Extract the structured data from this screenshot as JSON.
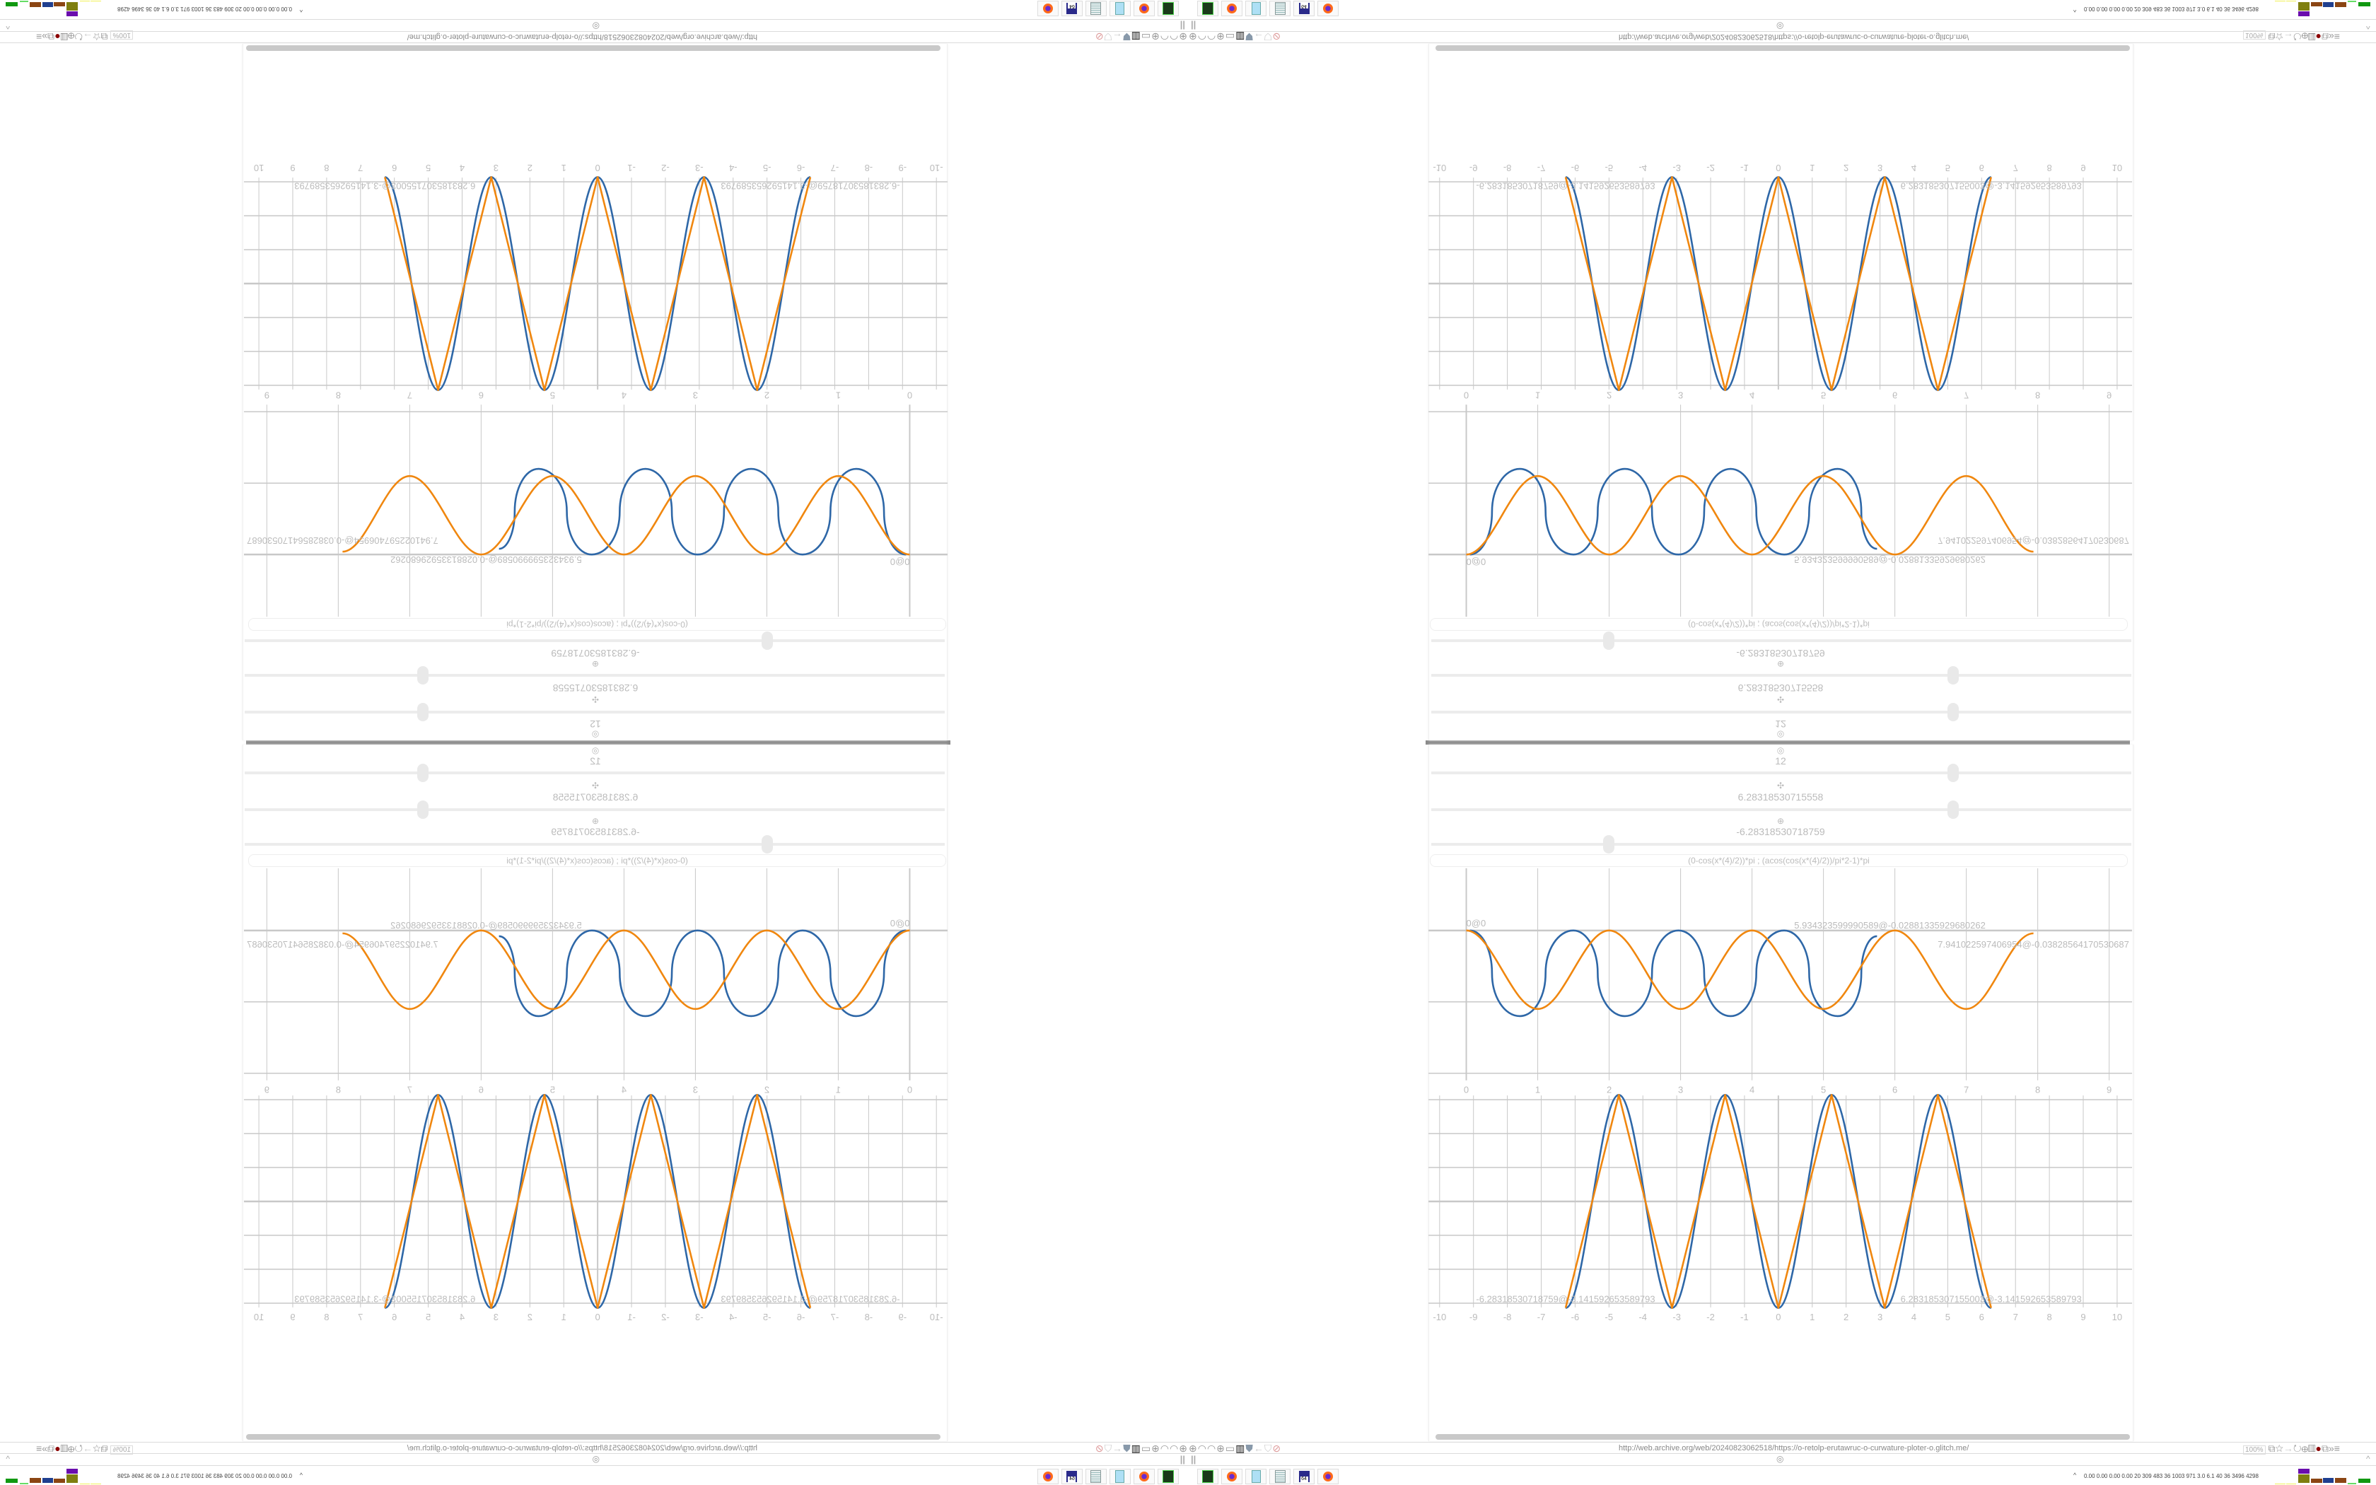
{
  "browser": {
    "url": "http://web.archive.org/web/20240823062518/https://o-retolp-erutawruc-o-curwature-ploter-o.glitch.me/",
    "zoom": "100%",
    "left_icons": [
      "globe-icon",
      "reload-icon",
      "reload-icon",
      "globe-icon",
      "folder-icon",
      "trash-icon",
      "shield-badge-icon",
      "back-arrow-icon",
      "shield-icon",
      "lock-off-icon"
    ],
    "right_icons": [
      "reader-icon",
      "star-icon",
      "forward-arrow-icon",
      "reload-icon",
      "globe-icon",
      "trash-icon",
      "addon-icon",
      "extension-icon",
      "overflow-icon",
      "menu-icon"
    ],
    "pause_glyph": "||",
    "scroll_glyph": "◎",
    "collapse_glyph": "^"
  },
  "controls": {
    "sliders": [
      {
        "icon": "◎",
        "value": "12",
        "position": 0.745
      },
      {
        "icon": "✣",
        "value": "6.28318530715558",
        "position": 0.745
      },
      {
        "icon": "⊕",
        "value": "-6.28318530718759",
        "position": 0.254
      }
    ],
    "formula": "(0-cos(x*(4)/2))*pi ; (acos(cos(x*(4)/2))/pi*2-1)*pi"
  },
  "chart_data": [
    {
      "type": "line",
      "xlim": [
        -0.53,
        9.32
      ],
      "ylim": [
        -2.33,
        0.89
      ],
      "grid": true,
      "x_ticks": [
        "0",
        "1",
        "2",
        "3",
        "4",
        "5",
        "6",
        "7",
        "8",
        "9"
      ],
      "x_tick_values": [
        0,
        1,
        2,
        3,
        4,
        5,
        6,
        7,
        8,
        9
      ],
      "y_gridlines": [
        0,
        -1,
        -2
      ],
      "series": [
        {
          "color": "#2e67a7",
          "interpolation": "oval",
          "points": [
            [
              0.05,
              0
            ],
            [
              0.36,
              -0.6
            ],
            [
              0.75,
              -1.2
            ],
            [
              1.11,
              -0.6
            ],
            [
              1.5,
              0
            ],
            [
              1.84,
              -0.6
            ],
            [
              2.22,
              -1.2
            ],
            [
              2.6,
              -0.6
            ],
            [
              2.97,
              0
            ],
            [
              3.33,
              -0.6
            ],
            [
              3.7,
              -1.2
            ],
            [
              4.06,
              -0.6
            ],
            [
              4.45,
              0
            ],
            [
              4.8,
              -0.6
            ],
            [
              5.2,
              -1.2
            ],
            [
              5.53,
              -0.6
            ],
            [
              5.75,
              -0.08
            ]
          ]
        },
        {
          "color": "#f0870f",
          "interpolation": "smooth",
          "points": [
            [
              0,
              0
            ],
            [
              1,
              -1.1
            ],
            [
              2,
              0
            ],
            [
              3,
              -1.1
            ],
            [
              4,
              0
            ],
            [
              5,
              -1.1
            ],
            [
              6,
              0
            ],
            [
              7,
              -1.1
            ],
            [
              7.94,
              -0.04
            ]
          ]
        }
      ],
      "point_labels": [
        {
          "x": 0,
          "y": 0,
          "text": "0@0"
        },
        {
          "x": 5.93,
          "y": -0.03,
          "text": "5.934323599990589@-0.02881335929680262"
        },
        {
          "x": 7.94,
          "y": -0.04,
          "text": "7.941022597406954@-0.03828564170530687"
        }
      ]
    },
    {
      "type": "line",
      "xlim": [
        -10.33,
        10.44
      ],
      "ylim": [
        -3.67,
        3.21
      ],
      "grid": true,
      "x_ticks": [
        "-10",
        "-9",
        "-8",
        "-7",
        "-6",
        "-5",
        "-4",
        "-3",
        "-2",
        "-1",
        "0",
        "1",
        "2",
        "3",
        "4",
        "5",
        "6",
        "7",
        "8",
        "9",
        "10"
      ],
      "x_tick_values": [
        -10,
        -9,
        -8,
        -7,
        -6,
        -5,
        -4,
        -3,
        -2,
        -1,
        0,
        1,
        2,
        3,
        4,
        5,
        6,
        7,
        8,
        9,
        10
      ],
      "y_gridlines": [
        3,
        2,
        1,
        0,
        -1,
        -2,
        -3
      ],
      "series": [
        {
          "color": "#2e67a7",
          "interpolation": "smooth",
          "points": [
            [
              -6.28,
              -3.14
            ],
            [
              -4.71,
              3.14
            ],
            [
              -3.14,
              -3.14
            ],
            [
              -1.57,
              3.14
            ],
            [
              0,
              -3.14
            ],
            [
              1.57,
              3.14
            ],
            [
              3.14,
              -3.14
            ],
            [
              4.71,
              3.14
            ],
            [
              6.28,
              -3.14
            ]
          ]
        },
        {
          "color": "#f0870f",
          "interpolation": "linear",
          "points": [
            [
              -6.28,
              -3.14
            ],
            [
              -4.71,
              3.14
            ],
            [
              -3.14,
              -3.14
            ],
            [
              -1.57,
              3.14
            ],
            [
              0,
              -3.14
            ],
            [
              1.57,
              3.14
            ],
            [
              3.14,
              -3.14
            ],
            [
              4.71,
              3.14
            ],
            [
              6.28,
              -3.14
            ]
          ]
        }
      ],
      "point_labels": [
        {
          "x": -6.28,
          "y": -3.14,
          "text": "-6.28318530718759@-3.141592653589793"
        },
        {
          "x": 6.28,
          "y": -3.14,
          "text": "6.283185307155003@-3.141592653589793"
        }
      ]
    }
  ],
  "taskbar": {
    "apps": [
      {
        "name": "terminal",
        "label": ""
      },
      {
        "name": "firefox",
        "label": ""
      },
      {
        "name": "calculator",
        "label": ""
      },
      {
        "name": "notepad",
        "label": ""
      },
      {
        "name": "floppy",
        "label": "64"
      },
      {
        "name": "firefox",
        "label": ""
      }
    ],
    "tray_text": "0.00 0.00 0.00 0.00  20  309  483  36  1003  971  3.0  6.1  40  36  3496 4298",
    "tray_glyph": "^",
    "meter_colors": [
      "#f2f25a",
      "#f2f25a",
      "#6a0dad",
      "#7f7f10",
      "#8b4513",
      "#1f3f8f",
      "#8b4513",
      "#66dd66",
      "#119911"
    ]
  },
  "colors": {
    "blue_series": "#2e67a7",
    "orange_series": "#f0870f",
    "grid": "#c8c8c8"
  }
}
